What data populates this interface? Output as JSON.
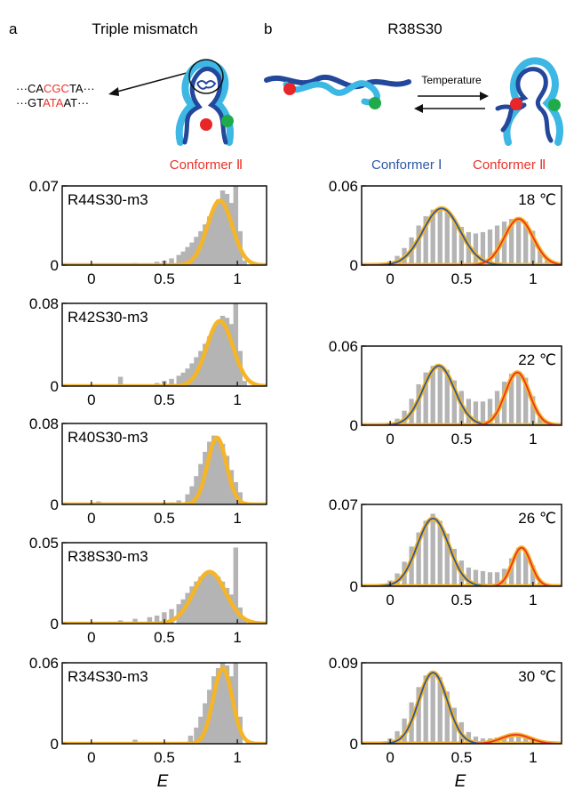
{
  "panel_a": {
    "letter": "a",
    "title": "Triple mismatch",
    "seq_top": [
      {
        "text": "···CA",
        "color": "#111111"
      },
      {
        "text": "CGC",
        "color": "#e8332a"
      },
      {
        "text": "TA···",
        "color": "#111111"
      }
    ],
    "seq_bottom": [
      {
        "text": "···GT",
        "color": "#111111"
      },
      {
        "text": "ATA",
        "color": "#e8332a"
      },
      {
        "text": "AT···",
        "color": "#111111"
      }
    ],
    "conformer_label": "Conformer Ⅱ"
  },
  "panel_b": {
    "letter": "b",
    "title": "R38S30",
    "arrow_label": "Temperature",
    "conformer1_label": "Conformer Ⅰ",
    "conformer2_label": "Conformer Ⅱ"
  },
  "x_axis_label": "E",
  "colors": {
    "histogram": "#b4b4b4",
    "fit_total": "#f5b526",
    "conformer_1": "#2b58a6",
    "conformer_2": "#ee3224",
    "strand_dark": "#23479a",
    "strand_light": "#3db7e4",
    "dye_red": "#e8262a",
    "dye_green": "#1fab4a",
    "label_red": "#e8332a",
    "label_blue": "#2b58a6"
  },
  "chart_data": [
    {
      "type": "bar",
      "panel": "a",
      "label": "R44S30-m3",
      "xlim": [
        -0.2,
        1.2
      ],
      "xticks": [
        0,
        0.5,
        1
      ],
      "ylim": [
        0,
        0.07
      ],
      "yticks": [
        "0",
        "0.07"
      ],
      "fits": [
        {
          "component": "Conformer Ⅱ",
          "peak_E": 0.88,
          "sigma": 0.085,
          "amplitude": 0.057
        }
      ],
      "histogram": {
        "x": [
          0.02,
          0.1,
          0.3,
          0.45,
          0.5,
          0.55,
          0.6,
          0.63,
          0.66,
          0.69,
          0.72,
          0.75,
          0.78,
          0.81,
          0.84,
          0.87,
          0.9,
          0.93,
          0.96,
          0.99,
          1.02,
          1.05
        ],
        "y": [
          0.001,
          0.001,
          0.002,
          0.003,
          0.004,
          0.006,
          0.009,
          0.012,
          0.016,
          0.02,
          0.025,
          0.03,
          0.036,
          0.043,
          0.05,
          0.058,
          0.066,
          0.063,
          0.055,
          0.07,
          0.03,
          0.004
        ]
      }
    },
    {
      "type": "bar",
      "panel": "a",
      "label": "R42S30-m3",
      "xlim": [
        -0.2,
        1.2
      ],
      "xticks": [
        0,
        0.5,
        1
      ],
      "ylim": [
        0,
        0.08
      ],
      "yticks": [
        "0",
        "0.08"
      ],
      "fits": [
        {
          "component": "Conformer Ⅱ",
          "peak_E": 0.88,
          "sigma": 0.09,
          "amplitude": 0.063
        }
      ],
      "histogram": {
        "x": [
          0.2,
          0.45,
          0.5,
          0.55,
          0.6,
          0.63,
          0.66,
          0.69,
          0.72,
          0.75,
          0.78,
          0.81,
          0.84,
          0.87,
          0.9,
          0.93,
          0.96,
          0.99,
          1.02,
          1.05
        ],
        "y": [
          0.009,
          0.003,
          0.005,
          0.007,
          0.01,
          0.013,
          0.017,
          0.022,
          0.028,
          0.034,
          0.041,
          0.048,
          0.056,
          0.063,
          0.068,
          0.066,
          0.06,
          0.08,
          0.034,
          0.005
        ]
      }
    },
    {
      "type": "bar",
      "panel": "a",
      "label": "R40S30-m3",
      "xlim": [
        -0.2,
        1.2
      ],
      "xticks": [
        0,
        0.5,
        1
      ],
      "ylim": [
        0,
        0.08
      ],
      "yticks": [
        "0",
        "0.08"
      ],
      "fits": [
        {
          "component": "Conformer Ⅱ",
          "peak_E": 0.86,
          "sigma": 0.065,
          "amplitude": 0.066
        }
      ],
      "histogram": {
        "x": [
          0.05,
          0.55,
          0.6,
          0.66,
          0.69,
          0.72,
          0.75,
          0.78,
          0.81,
          0.84,
          0.87,
          0.9,
          0.93,
          0.96,
          0.99,
          1.02
        ],
        "y": [
          0.003,
          0.002,
          0.004,
          0.01,
          0.018,
          0.028,
          0.04,
          0.052,
          0.062,
          0.068,
          0.066,
          0.06,
          0.048,
          0.034,
          0.022,
          0.012
        ]
      }
    },
    {
      "type": "bar",
      "panel": "a",
      "label": "R38S30-m3",
      "xlim": [
        -0.2,
        1.2
      ],
      "xticks": [
        0,
        0.5,
        1
      ],
      "ylim": [
        0,
        0.05
      ],
      "yticks": [
        "0",
        "0.05"
      ],
      "fits": [
        {
          "component": "Conformer Ⅱ",
          "peak_E": 0.81,
          "sigma": 0.11,
          "amplitude": 0.032
        }
      ],
      "histogram": {
        "x": [
          0.02,
          0.1,
          0.2,
          0.3,
          0.4,
          0.45,
          0.5,
          0.55,
          0.6,
          0.63,
          0.66,
          0.69,
          0.72,
          0.75,
          0.78,
          0.81,
          0.84,
          0.87,
          0.9,
          0.93,
          0.96,
          0.99,
          1.02,
          1.05
        ],
        "y": [
          0.001,
          0.001,
          0.002,
          0.003,
          0.004,
          0.005,
          0.007,
          0.009,
          0.012,
          0.015,
          0.019,
          0.023,
          0.026,
          0.029,
          0.031,
          0.032,
          0.031,
          0.029,
          0.026,
          0.022,
          0.018,
          0.047,
          0.01,
          0.003
        ]
      }
    },
    {
      "type": "bar",
      "panel": "a",
      "label": "R34S30-m3",
      "xlim": [
        -0.2,
        1.2
      ],
      "xticks": [
        0,
        0.5,
        1
      ],
      "ylim": [
        0,
        0.06
      ],
      "yticks": [
        "0",
        "0.06"
      ],
      "fits": [
        {
          "component": "Conformer Ⅱ",
          "peak_E": 0.9,
          "sigma": 0.065,
          "amplitude": 0.056
        }
      ],
      "histogram": {
        "x": [
          0.3,
          0.68,
          0.72,
          0.75,
          0.78,
          0.81,
          0.84,
          0.87,
          0.9,
          0.93,
          0.96,
          0.99,
          1.02
        ],
        "y": [
          0.003,
          0.006,
          0.012,
          0.02,
          0.03,
          0.04,
          0.05,
          0.056,
          0.06,
          0.058,
          0.05,
          0.06,
          0.02
        ]
      }
    },
    {
      "type": "bar",
      "panel": "b",
      "label": "18 ℃",
      "xlim": [
        -0.2,
        1.2
      ],
      "xticks": [
        0,
        0.5,
        1
      ],
      "ylim": [
        0,
        0.06
      ],
      "yticks": [
        "0",
        "0.06"
      ],
      "fits": [
        {
          "component": "Conformer Ⅰ",
          "peak_E": 0.36,
          "sigma": 0.13,
          "amplitude": 0.043
        },
        {
          "component": "Conformer Ⅱ",
          "peak_E": 0.9,
          "sigma": 0.1,
          "amplitude": 0.035
        }
      ],
      "histogram": {
        "x": [
          0.0,
          0.05,
          0.1,
          0.15,
          0.2,
          0.25,
          0.3,
          0.35,
          0.4,
          0.45,
          0.5,
          0.55,
          0.6,
          0.65,
          0.7,
          0.75,
          0.8,
          0.85,
          0.9,
          0.95,
          1.0,
          1.05,
          1.1
        ],
        "y": [
          0.003,
          0.007,
          0.013,
          0.021,
          0.03,
          0.037,
          0.042,
          0.044,
          0.041,
          0.035,
          0.029,
          0.025,
          0.024,
          0.025,
          0.027,
          0.03,
          0.033,
          0.035,
          0.036,
          0.033,
          0.026,
          0.012,
          0.004
        ]
      }
    },
    {
      "type": "bar",
      "panel": "b",
      "label": "22 ℃",
      "xlim": [
        -0.2,
        1.2
      ],
      "xticks": [
        0,
        0.5,
        1
      ],
      "ylim": [
        0,
        0.06
      ],
      "yticks": [
        "0",
        "0.06"
      ],
      "fits": [
        {
          "component": "Conformer Ⅰ",
          "peak_E": 0.34,
          "sigma": 0.11,
          "amplitude": 0.045
        },
        {
          "component": "Conformer Ⅱ",
          "peak_E": 0.89,
          "sigma": 0.085,
          "amplitude": 0.04
        }
      ],
      "histogram": {
        "x": [
          0.0,
          0.05,
          0.1,
          0.15,
          0.2,
          0.25,
          0.3,
          0.35,
          0.4,
          0.45,
          0.5,
          0.55,
          0.6,
          0.65,
          0.7,
          0.75,
          0.8,
          0.85,
          0.9,
          0.95,
          1.0,
          1.05
        ],
        "y": [
          0.002,
          0.005,
          0.011,
          0.02,
          0.031,
          0.04,
          0.045,
          0.046,
          0.042,
          0.034,
          0.026,
          0.02,
          0.018,
          0.018,
          0.02,
          0.026,
          0.033,
          0.039,
          0.041,
          0.036,
          0.022,
          0.006
        ]
      }
    },
    {
      "type": "bar",
      "panel": "b",
      "label": "26 ℃",
      "xlim": [
        -0.2,
        1.2
      ],
      "xticks": [
        0,
        0.5,
        1
      ],
      "ylim": [
        0,
        0.07
      ],
      "yticks": [
        "0",
        "0.07"
      ],
      "fits": [
        {
          "component": "Conformer Ⅰ",
          "peak_E": 0.3,
          "sigma": 0.11,
          "amplitude": 0.058
        },
        {
          "component": "Conformer Ⅱ",
          "peak_E": 0.92,
          "sigma": 0.065,
          "amplitude": 0.033
        }
      ],
      "histogram": {
        "x": [
          -0.05,
          0.0,
          0.05,
          0.1,
          0.15,
          0.2,
          0.25,
          0.3,
          0.35,
          0.4,
          0.45,
          0.5,
          0.55,
          0.6,
          0.65,
          0.7,
          0.75,
          0.8,
          0.85,
          0.9,
          0.95,
          1.0,
          1.05
        ],
        "y": [
          0.002,
          0.005,
          0.011,
          0.021,
          0.034,
          0.046,
          0.056,
          0.062,
          0.056,
          0.045,
          0.032,
          0.022,
          0.016,
          0.014,
          0.013,
          0.012,
          0.012,
          0.015,
          0.024,
          0.033,
          0.031,
          0.018,
          0.004
        ]
      }
    },
    {
      "type": "bar",
      "panel": "b",
      "label": "30 ℃",
      "xlim": [
        -0.2,
        1.2
      ],
      "xticks": [
        0,
        0.5,
        1
      ],
      "ylim": [
        0,
        0.09
      ],
      "yticks": [
        "0",
        "0.09"
      ],
      "fits": [
        {
          "component": "Conformer Ⅰ",
          "peak_E": 0.3,
          "sigma": 0.1,
          "amplitude": 0.079
        },
        {
          "component": "Conformer Ⅱ",
          "peak_E": 0.88,
          "sigma": 0.1,
          "amplitude": 0.01
        }
      ],
      "histogram": {
        "x": [
          -0.05,
          0.0,
          0.05,
          0.1,
          0.15,
          0.2,
          0.25,
          0.3,
          0.35,
          0.4,
          0.45,
          0.5,
          0.55,
          0.6,
          0.65,
          0.7,
          0.75,
          0.8,
          0.85,
          0.9,
          0.95,
          1.0
        ],
        "y": [
          0.002,
          0.006,
          0.014,
          0.028,
          0.046,
          0.063,
          0.076,
          0.081,
          0.074,
          0.058,
          0.04,
          0.024,
          0.013,
          0.008,
          0.006,
          0.006,
          0.007,
          0.009,
          0.01,
          0.01,
          0.009,
          0.006
        ]
      }
    }
  ]
}
